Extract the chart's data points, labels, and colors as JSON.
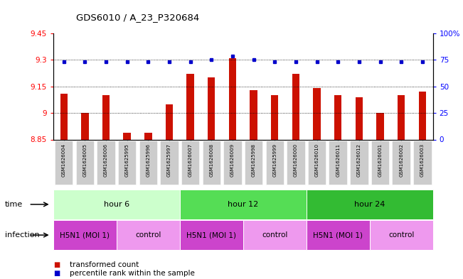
{
  "title": "GDS6010 / A_23_P320684",
  "samples": [
    "GSM1626004",
    "GSM1626005",
    "GSM1626006",
    "GSM1625995",
    "GSM1625996",
    "GSM1625997",
    "GSM1626007",
    "GSM1626008",
    "GSM1626009",
    "GSM1625998",
    "GSM1625999",
    "GSM1626000",
    "GSM1626010",
    "GSM1626011",
    "GSM1626012",
    "GSM1626001",
    "GSM1626002",
    "GSM1626003"
  ],
  "bar_values": [
    9.11,
    9.0,
    9.1,
    8.89,
    8.89,
    9.05,
    9.22,
    9.2,
    9.31,
    9.13,
    9.1,
    9.22,
    9.14,
    9.1,
    9.09,
    9.0,
    9.1,
    9.12
  ],
  "percentile_values": [
    73,
    73,
    73,
    73,
    73,
    73,
    73,
    75,
    79,
    75,
    73,
    73,
    73,
    73,
    73,
    73,
    73,
    73
  ],
  "bar_color": "#cc1100",
  "percentile_color": "#0000cc",
  "ylim_left": [
    8.85,
    9.45
  ],
  "ylim_right": [
    0,
    100
  ],
  "yticks_left": [
    8.85,
    9.0,
    9.15,
    9.3,
    9.45
  ],
  "yticks_right": [
    0,
    25,
    50,
    75,
    100
  ],
  "ytick_labels_left": [
    "8.85",
    "9",
    "9.15",
    "9.3",
    "9.45"
  ],
  "ytick_labels_right": [
    "0",
    "25",
    "50",
    "75",
    "100%"
  ],
  "hlines": [
    9.0,
    9.15,
    9.3
  ],
  "time_groups": [
    {
      "label": "hour 6",
      "start": 0,
      "end": 6,
      "color": "#ccffcc"
    },
    {
      "label": "hour 12",
      "start": 6,
      "end": 12,
      "color": "#55dd55"
    },
    {
      "label": "hour 24",
      "start": 12,
      "end": 18,
      "color": "#33bb33"
    }
  ],
  "infection_groups": [
    {
      "label": "H5N1 (MOI 1)",
      "start": 0,
      "end": 3,
      "color": "#cc44cc"
    },
    {
      "label": "control",
      "start": 3,
      "end": 6,
      "color": "#ee99ee"
    },
    {
      "label": "H5N1 (MOI 1)",
      "start": 6,
      "end": 9,
      "color": "#cc44cc"
    },
    {
      "label": "control",
      "start": 9,
      "end": 12,
      "color": "#ee99ee"
    },
    {
      "label": "H5N1 (MOI 1)",
      "start": 12,
      "end": 15,
      "color": "#cc44cc"
    },
    {
      "label": "control",
      "start": 15,
      "end": 18,
      "color": "#ee99ee"
    }
  ],
  "legend": [
    {
      "label": "transformed count",
      "color": "#cc1100"
    },
    {
      "label": "percentile rank within the sample",
      "color": "#0000cc"
    }
  ],
  "bar_width": 0.35,
  "sample_box_color": "#cccccc",
  "time_label": "time",
  "infection_label": "infection"
}
